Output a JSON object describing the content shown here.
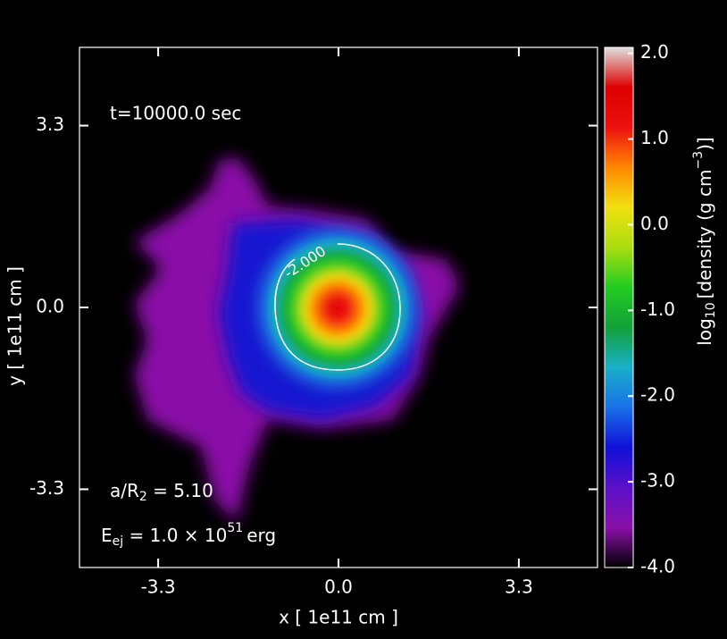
{
  "chart_data": {
    "type": "image",
    "annotations": {
      "time": "t=10000.0 sec",
      "ratio": [
        "a/R",
        "2",
        " = 5.10"
      ],
      "energy": [
        "E",
        "ej",
        " = 1.0 × 10",
        "51",
        "erg"
      ]
    },
    "xlabel": "x  [ 1e11  cm ]",
    "ylabel": "y  [ 1e11  cm ]",
    "xlim": [
      -4.74,
      4.74
    ],
    "ylim": [
      -4.72,
      4.72
    ],
    "xticks": [
      -3.3,
      {
        "value": 0,
        "label": "0.0"
      },
      3.3
    ],
    "yticks": [
      -3.3,
      {
        "value": 0,
        "label": "0.0"
      },
      3.3
    ],
    "contour": {
      "value": -2,
      "label": "-2.000"
    },
    "colorbar": {
      "label": [
        "log",
        "10",
        "[density (g cm",
        "−3",
        ")]"
      ],
      "clim": [
        -4,
        2.07
      ],
      "ticks": [
        {
          "value": -4,
          "label": "-4.0"
        },
        {
          "value": -3,
          "label": "-3.0"
        },
        {
          "value": -2,
          "label": "-2.0"
        },
        {
          "value": -1,
          "label": "-1.0"
        },
        {
          "value": 0,
          "label": "0.0"
        },
        {
          "value": 1,
          "label": "1.0"
        },
        {
          "value": 2,
          "label": "2.0"
        }
      ],
      "colormap": [
        "#000000",
        "#8a10a8",
        "#5a10c8",
        "#1010d8",
        "#1a70e8",
        "#19b0c8",
        "#13a03a",
        "#22cc22",
        "#aadd10",
        "#f0e010",
        "#ff8800",
        "#ee1010",
        "#dd0000",
        "#e0e0e0"
      ]
    }
  }
}
